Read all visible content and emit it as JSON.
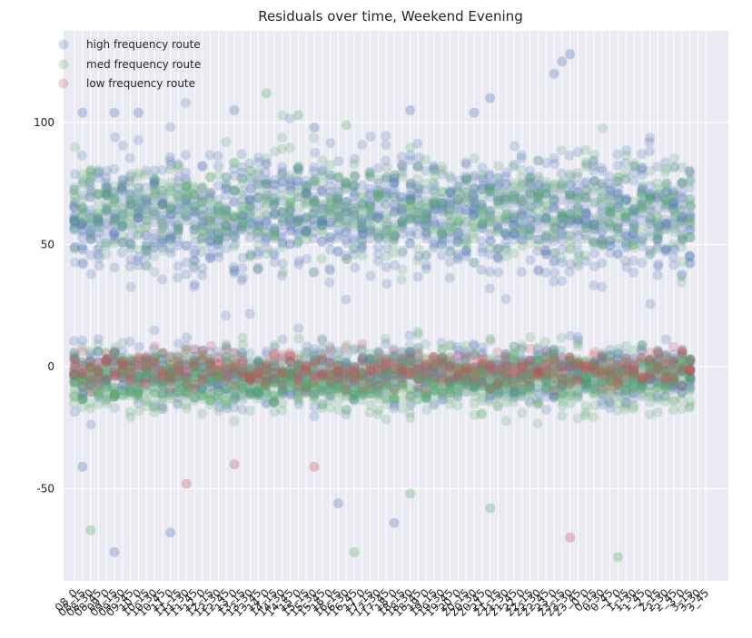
{
  "chart_data": {
    "type": "scatter",
    "title": "Residuals over time, Weekend Evening",
    "xlabel": "",
    "ylabel": "",
    "ylim": [
      -90,
      140
    ],
    "y_ticks": [
      100,
      50,
      0,
      -50
    ],
    "grid": true,
    "legend_position": "top-left",
    "x_ticks": [
      "08_0",
      "08_15",
      "08_30",
      "08_45",
      "09_0",
      "09_15",
      "09_30",
      "09_45",
      "10_0",
      "10_15",
      "10_30",
      "10_45",
      "11_0",
      "11_15",
      "11_30",
      "11_45",
      "12_0",
      "12_15",
      "12_30",
      "12_45",
      "13_0",
      "13_15",
      "13_30",
      "13_45",
      "14_0",
      "14_15",
      "14_30",
      "14_45",
      "15_0",
      "15_15",
      "15_30",
      "15_45",
      "16_0",
      "16_15",
      "16_30",
      "16_45",
      "17_0",
      "17_15",
      "17_30",
      "17_45",
      "18_0",
      "18_15",
      "18_30",
      "18_45",
      "19_0",
      "19_15",
      "19_30",
      "19_45",
      "20_0",
      "20_15",
      "20_30",
      "20_45",
      "21_0",
      "21_15",
      "21_30",
      "21_45",
      "22_0",
      "22_15",
      "22_30",
      "22_45",
      "23_0",
      "23_15",
      "23_30",
      "23_45",
      "0_0",
      "0_15",
      "0_30",
      "0_45",
      "1_0",
      "1_15",
      "1_30",
      "1_45",
      "2_0",
      "2_15",
      "2_30",
      "2_45",
      "3_0",
      "3_15",
      "3_30",
      "3_45"
    ],
    "series": [
      {
        "name": "high frequency route",
        "color": "#4c72b0",
        "bands": [
          {
            "center": 62,
            "spread": 22,
            "count_per_tick": 18
          },
          {
            "center": -3,
            "spread": 10,
            "count_per_tick": 14
          }
        ],
        "outliers": [
          [
            1,
            104
          ],
          [
            5,
            104
          ],
          [
            8,
            104
          ],
          [
            20,
            105
          ],
          [
            30,
            98
          ],
          [
            42,
            105
          ],
          [
            50,
            104
          ],
          [
            52,
            110
          ],
          [
            60,
            120
          ],
          [
            61,
            125
          ],
          [
            62,
            128
          ],
          [
            5,
            -76
          ],
          [
            12,
            -68
          ],
          [
            40,
            -64
          ],
          [
            1,
            -41
          ],
          [
            33,
            -56
          ]
        ]
      },
      {
        "name": "med frequency route",
        "color": "#55a868",
        "bands": [
          {
            "center": 65,
            "spread": 18,
            "count_per_tick": 10
          },
          {
            "center": -5,
            "spread": 11,
            "count_per_tick": 18
          }
        ],
        "outliers": [
          [
            24,
            112
          ],
          [
            28,
            103
          ],
          [
            34,
            99
          ],
          [
            2,
            -67
          ],
          [
            35,
            -76
          ],
          [
            42,
            -52
          ],
          [
            52,
            -58
          ],
          [
            68,
            -78
          ]
        ]
      },
      {
        "name": "low frequency route",
        "color": "#c44e52",
        "bands": [
          {
            "center": -1,
            "spread": 7,
            "count_per_tick": 6
          }
        ],
        "outliers": [
          [
            62,
            -70
          ],
          [
            20,
            -40
          ],
          [
            30,
            -41
          ],
          [
            14,
            -48
          ]
        ]
      }
    ]
  }
}
